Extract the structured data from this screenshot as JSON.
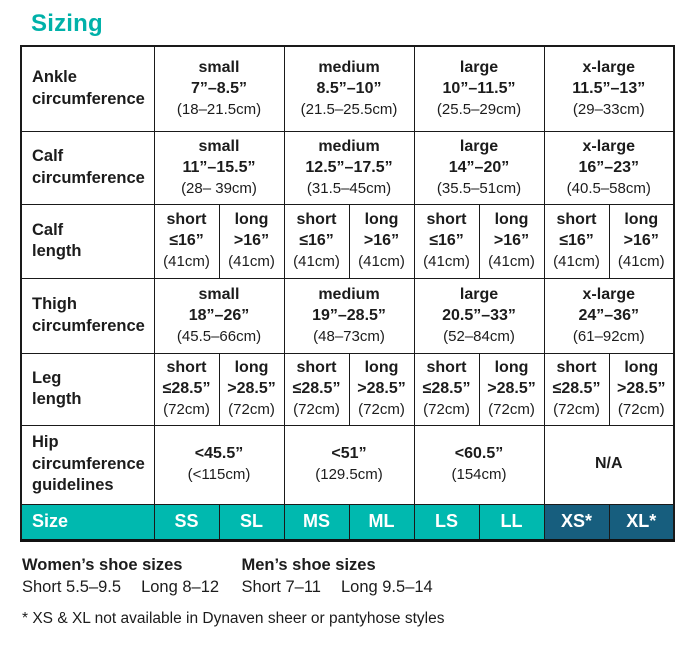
{
  "page": {
    "title": "Sizing"
  },
  "colors": {
    "accent_teal": "#00b1a9",
    "size_row_teal": "#00b9af",
    "size_row_navy": "#175e7e",
    "border_black": "#1a1a1a",
    "text": "#1c1c1c"
  },
  "table": {
    "rows": [
      {
        "label": [
          "Ankle",
          "circumference"
        ],
        "span": 2,
        "cells": [
          [
            "small",
            "7”–8.5”",
            "(18–21.5cm)"
          ],
          [
            "medium",
            "8.5”–10”",
            "(21.5–25.5cm)"
          ],
          [
            "large",
            "10”–11.5”",
            "(25.5–29cm)"
          ],
          [
            "x-large",
            "11.5”–13”",
            "(29–33cm)"
          ]
        ]
      },
      {
        "label": [
          "Calf",
          "circumference"
        ],
        "span": 2,
        "cells": [
          [
            "small",
            "11”–15.5”",
            "(28– 39cm)"
          ],
          [
            "medium",
            "12.5”–17.5”",
            "(31.5–45cm)"
          ],
          [
            "large",
            "14”–20”",
            "(35.5–51cm)"
          ],
          [
            "x-large",
            "16”–23”",
            "(40.5–58cm)"
          ]
        ]
      },
      {
        "label": [
          "Calf",
          "length"
        ],
        "span": 1,
        "cells": [
          [
            "short",
            "≤16”",
            "(41cm)"
          ],
          [
            "long",
            ">16”",
            "(41cm)"
          ],
          [
            "short",
            "≤16”",
            "(41cm)"
          ],
          [
            "long",
            ">16”",
            "(41cm)"
          ],
          [
            "short",
            "≤16”",
            "(41cm)"
          ],
          [
            "long",
            ">16”",
            "(41cm)"
          ],
          [
            "short",
            "≤16”",
            "(41cm)"
          ],
          [
            "long",
            ">16”",
            "(41cm)"
          ]
        ]
      },
      {
        "label": [
          "Thigh",
          "circumference"
        ],
        "span": 2,
        "cells": [
          [
            "small",
            "18”–26”",
            "(45.5–66cm)"
          ],
          [
            "medium",
            "19”–28.5”",
            "(48–73cm)"
          ],
          [
            "large",
            "20.5”–33”",
            "(52–84cm)"
          ],
          [
            "x-large",
            "24”–36”",
            "(61–92cm)"
          ]
        ]
      },
      {
        "label": [
          "Leg",
          "length"
        ],
        "span": 1,
        "cells": [
          [
            "short",
            "≤28.5”",
            "(72cm)"
          ],
          [
            "long",
            ">28.5”",
            "(72cm)"
          ],
          [
            "short",
            "≤28.5”",
            "(72cm)"
          ],
          [
            "long",
            ">28.5”",
            "(72cm)"
          ],
          [
            "short",
            "≤28.5”",
            "(72cm)"
          ],
          [
            "long",
            ">28.5”",
            "(72cm)"
          ],
          [
            "short",
            "≤28.5”",
            "(72cm)"
          ],
          [
            "long",
            ">28.5”",
            "(72cm)"
          ]
        ]
      },
      {
        "label": [
          "Hip",
          "circumference",
          "guidelines"
        ],
        "span": 2,
        "cells": [
          [
            "<45.5”",
            "(<115cm)"
          ],
          [
            "<51”",
            "(129.5cm)"
          ],
          [
            "<60.5”",
            "(154cm)"
          ],
          [
            "N/A"
          ]
        ]
      }
    ],
    "size_row": {
      "label": "Size",
      "cells": [
        {
          "label": "SS",
          "variant": "teal"
        },
        {
          "label": "SL",
          "variant": "teal"
        },
        {
          "label": "MS",
          "variant": "teal"
        },
        {
          "label": "ML",
          "variant": "teal"
        },
        {
          "label": "LS",
          "variant": "teal"
        },
        {
          "label": "LL",
          "variant": "teal"
        },
        {
          "label": "XS*",
          "variant": "navy"
        },
        {
          "label": "XL*",
          "variant": "navy"
        }
      ]
    }
  },
  "footer": {
    "womens": {
      "title": "Women’s shoe sizes",
      "short": "Short 5.5–9.5",
      "long": "Long 8–12"
    },
    "mens": {
      "title": "Men’s shoe sizes",
      "short": "Short 7–11",
      "long": "Long 9.5–14"
    },
    "footnote": "* XS & XL not available in Dynaven sheer or pantyhose styles"
  }
}
